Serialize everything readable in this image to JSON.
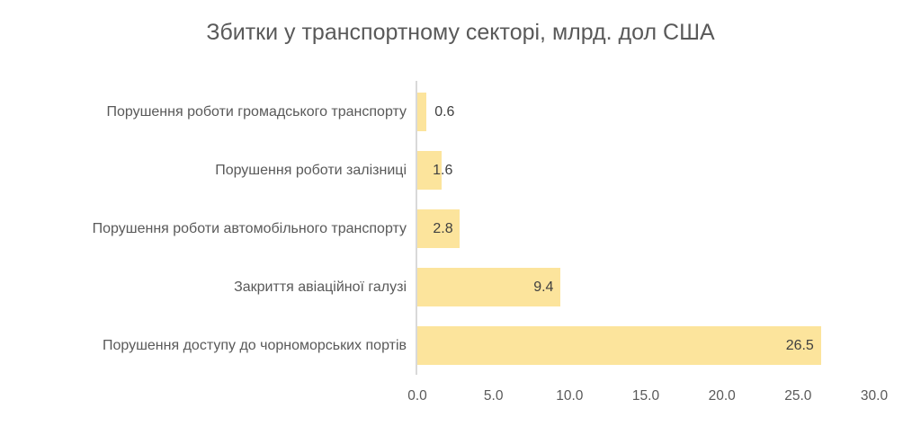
{
  "title": "Збитки у транспортному секторі, млрд. дол США",
  "chart_data": {
    "type": "bar",
    "orientation": "horizontal",
    "title": "Збитки у транспортному секторі, млрд. дол США",
    "categories": [
      "Порушення роботи громадського транспорту",
      "Порушення роботи залізниці",
      "Порушення роботи автомобільного транспорту",
      "Закриття авіаційної галузі",
      "Порушення доступу до чорноморських портів"
    ],
    "values": [
      0.6,
      1.6,
      2.8,
      9.4,
      26.5
    ],
    "data_labels": [
      "0.6",
      "1.6",
      "2.8",
      "9.4",
      "26.5"
    ],
    "xlabel": "",
    "ylabel": "",
    "xlim": [
      0,
      30
    ],
    "x_ticks": [
      "0.0",
      "5.0",
      "10.0",
      "15.0",
      "20.0",
      "25.0",
      "30.0"
    ],
    "x_tick_values": [
      0,
      5,
      10,
      15,
      20,
      25,
      30
    ],
    "grid": false,
    "legend": "none",
    "colors": {
      "bar_fill": "#FCE49C",
      "title_text": "#595959",
      "axis_text": "#595959",
      "data_label_text": "#404040",
      "axis_line": "#D9D9D9",
      "background": "#FFFFFF"
    }
  }
}
